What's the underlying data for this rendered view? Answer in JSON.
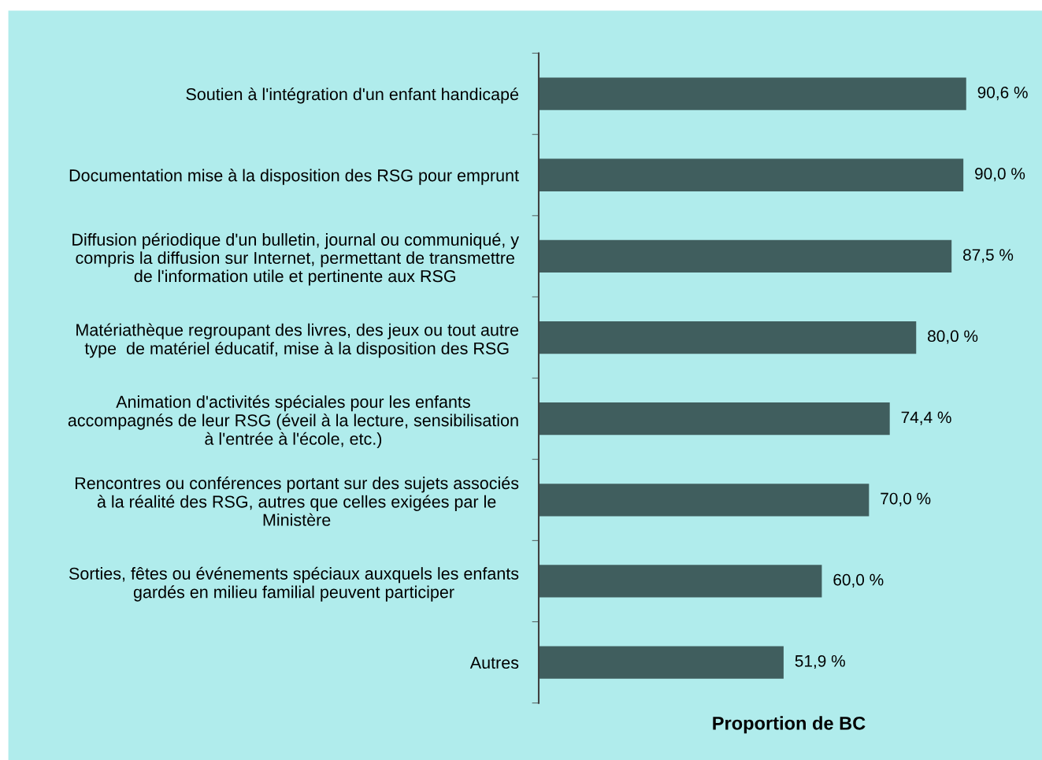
{
  "chart_data": {
    "type": "bar",
    "orientation": "horizontal",
    "xlabel": "Proportion de BC",
    "categories": [
      "Soutien à l'intégration d'un enfant handicapé",
      "Documentation mise à la disposition des RSG pour emprunt",
      "Diffusion périodique d'un bulletin, journal ou communiqué, y\ncompris la diffusion sur Internet, permettant de transmettre\nde l'information utile et pertinente aux RSG",
      "Matériathèque regroupant des livres, des jeux ou tout autre\ntype  de matériel éducatif, mise à la disposition des RSG",
      "Animation d'activités spéciales pour les enfants\naccompagnés de leur RSG (éveil à la lecture, sensibilisation\nà l'entrée à l'école, etc.)",
      "Rencontres ou conférences portant sur des sujets associés\nà la réalité des RSG, autres que celles exigées par le\nMinistère",
      "Sorties, fêtes ou événements spéciaux auxquels les enfants\ngardés en milieu familial peuvent participer",
      "Autres"
    ],
    "values": [
      90.6,
      90.0,
      87.5,
      80.0,
      74.4,
      70.0,
      60.0,
      51.9
    ],
    "value_labels": [
      "90,6 %",
      "90,0 %",
      "87,5 %",
      "80,0 %",
      "74,4 %",
      "70,0 %",
      "60,0 %",
      "51,9 %"
    ],
    "color": "#405e5e",
    "tick_labels": "y",
    "grid": false,
    "legend": false
  }
}
